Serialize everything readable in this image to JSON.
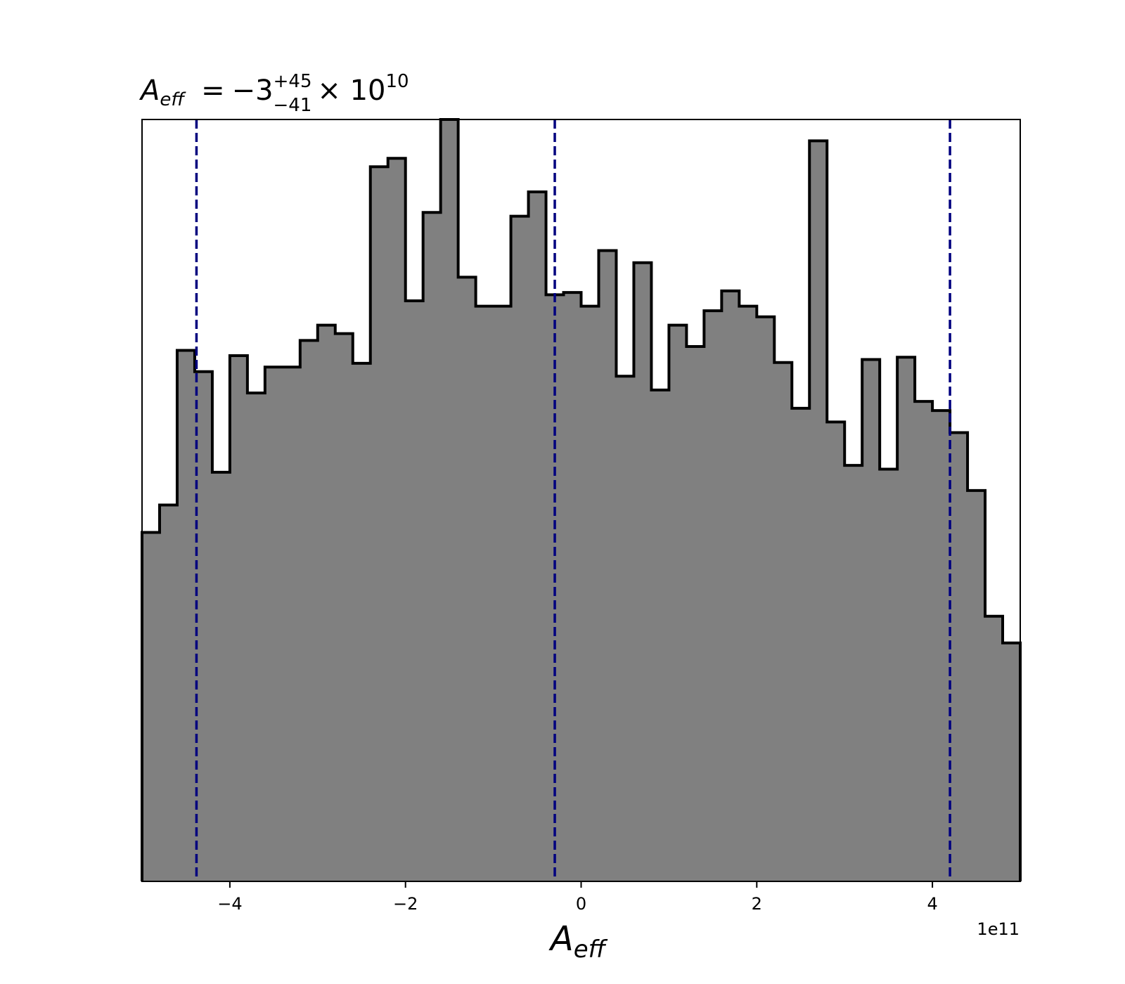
{
  "chart_data": {
    "type": "histogram",
    "title": {
      "variable": "A",
      "variable_sub": "eff",
      "equals": "=",
      "median": "−3",
      "upper": "+45",
      "lower": "−41",
      "multiplier": "× 10",
      "exponent": "10"
    },
    "xlabel": {
      "main": "A",
      "sub": "eff"
    },
    "x_offset_label": "1e11",
    "xlim": [
      -5.0,
      5.0
    ],
    "ylim": [
      0,
      1.0
    ],
    "x_ticks": [
      -4,
      -2,
      0,
      2,
      4
    ],
    "x_tick_labels": [
      "−4",
      "−2",
      "0",
      "2",
      "4"
    ],
    "bin_edges": [
      -5.0,
      -4.8,
      -4.6,
      -4.4,
      -4.2,
      -4.0,
      -3.8,
      -3.6,
      -3.4,
      -3.2,
      -3.0,
      -2.8,
      -2.6,
      -2.4,
      -2.2,
      -2.0,
      -1.8,
      -1.6,
      -1.4,
      -1.2,
      -1.0,
      -0.8,
      -0.6,
      -0.4,
      -0.2,
      0.0,
      0.2,
      0.4,
      0.6,
      0.8,
      1.0,
      1.2,
      1.4,
      1.6,
      1.8,
      2.0,
      2.2,
      2.4,
      2.6,
      2.8,
      3.0,
      3.2,
      3.4,
      3.6,
      3.8,
      4.0,
      4.2,
      4.4,
      4.6,
      4.8,
      5.0
    ],
    "counts": [
      0.458,
      0.494,
      0.697,
      0.669,
      0.537,
      0.69,
      0.641,
      0.675,
      0.675,
      0.71,
      0.73,
      0.719,
      0.68,
      0.938,
      0.949,
      0.762,
      0.878,
      1.0,
      0.793,
      0.755,
      0.755,
      0.873,
      0.905,
      0.77,
      0.773,
      0.755,
      0.828,
      0.663,
      0.812,
      0.645,
      0.73,
      0.702,
      0.749,
      0.775,
      0.755,
      0.741,
      0.681,
      0.621,
      0.972,
      0.603,
      0.546,
      0.685,
      0.541,
      0.688,
      0.63,
      0.618,
      0.589,
      0.513,
      0.348,
      0.313
    ],
    "quantile_lines": [
      -4.38,
      -0.3,
      4.2
    ],
    "colors": {
      "fill": "#808080",
      "edge": "#000000",
      "quantile_line": "#00007f"
    }
  }
}
